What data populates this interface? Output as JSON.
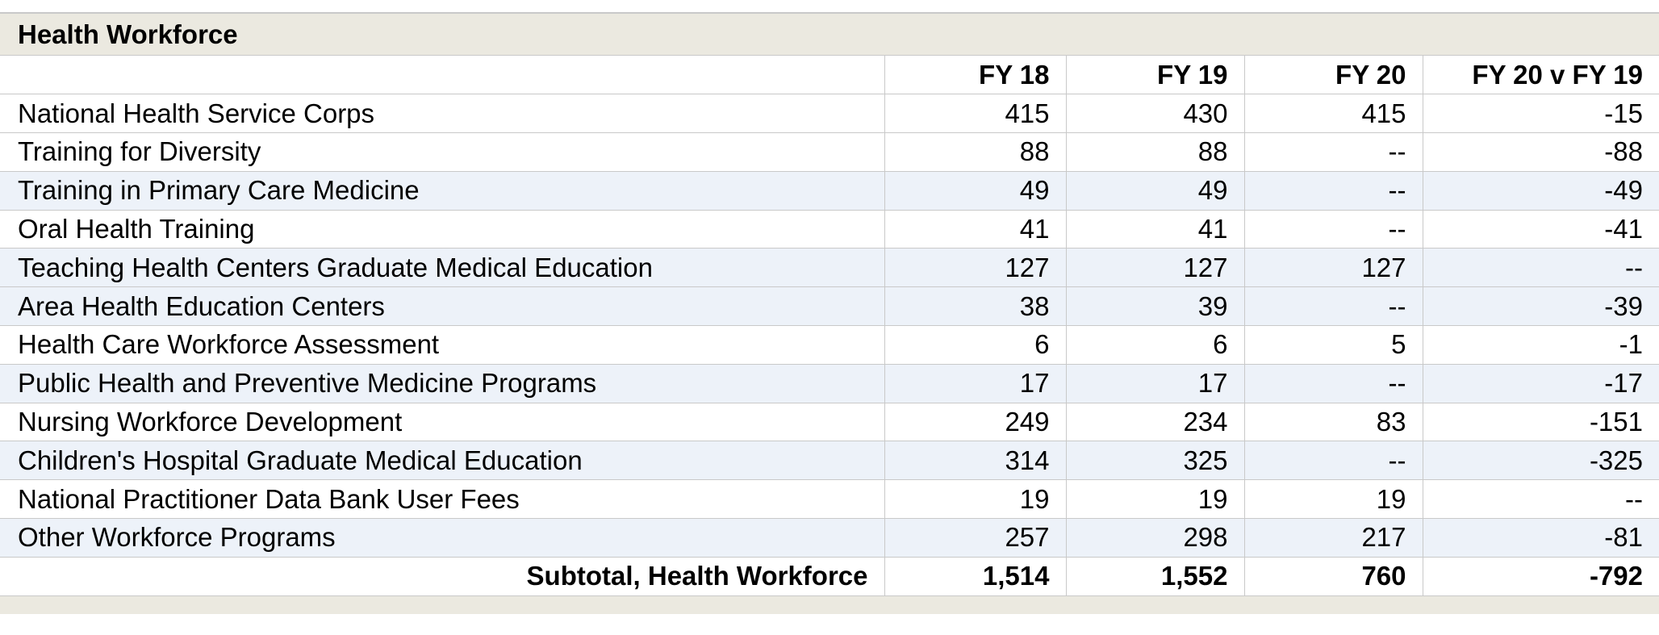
{
  "title": "Health Workforce",
  "columns": [
    "",
    "FY 18",
    "FY 19",
    "FY 20",
    "FY 20 v FY 19"
  ],
  "rows": [
    {
      "name": "National Health Service Corps",
      "fy18": "415",
      "fy19": "430",
      "fy20": "415",
      "diff": "-15"
    },
    {
      "name": "Training for Diversity",
      "fy18": "88",
      "fy19": "88",
      "fy20": "--",
      "diff": "-88"
    },
    {
      "name": "Training in Primary Care Medicine",
      "fy18": "49",
      "fy19": "49",
      "fy20": "--",
      "diff": "-49"
    },
    {
      "name": "Oral Health Training",
      "fy18": "41",
      "fy19": "41",
      "fy20": "--",
      "diff": "-41"
    },
    {
      "name": "Teaching Health Centers Graduate Medical Education",
      "fy18": "127",
      "fy19": "127",
      "fy20": "127",
      "diff": "--"
    },
    {
      "name": "Area Health Education Centers",
      "fy18": "38",
      "fy19": "39",
      "fy20": "--",
      "diff": "-39"
    },
    {
      "name": "Health Care Workforce Assessment",
      "fy18": "6",
      "fy19": "6",
      "fy20": "5",
      "diff": "-1"
    },
    {
      "name": "Public Health and Preventive Medicine Programs",
      "fy18": "17",
      "fy19": "17",
      "fy20": "--",
      "diff": "-17"
    },
    {
      "name": "Nursing Workforce Development",
      "fy18": "249",
      "fy19": "234",
      "fy20": "83",
      "diff": "-151"
    },
    {
      "name": "Children's Hospital Graduate Medical Education",
      "fy18": "314",
      "fy19": "325",
      "fy20": "--",
      "diff": "-325"
    },
    {
      "name": "National Practitioner Data Bank User Fees",
      "fy18": "19",
      "fy19": "19",
      "fy20": "19",
      "diff": "--"
    },
    {
      "name": "Other Workforce Programs",
      "fy18": "257",
      "fy19": "298",
      "fy20": "217",
      "diff": "-81"
    }
  ],
  "total": {
    "name": "Subtotal, Health Workforce",
    "fy18": "1,514",
    "fy19": "1,552",
    "fy20": "760",
    "diff": "-792"
  },
  "colors": {
    "title_bg": "#ebe9e0",
    "row_shade": "#edf2f9",
    "rule": "#c9c9c9"
  }
}
